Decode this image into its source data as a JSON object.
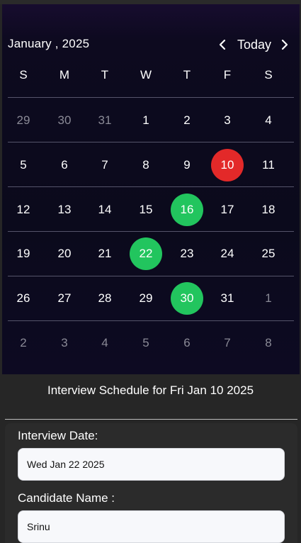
{
  "calendar": {
    "month_label": "January , 2025",
    "today_label": "Today",
    "weekdays": [
      "S",
      "M",
      "T",
      "W",
      "T",
      "F",
      "S"
    ],
    "weeks": [
      [
        "29",
        "30",
        "31",
        "1",
        "2",
        "3",
        "4"
      ],
      [
        "5",
        "6",
        "7",
        "8",
        "9",
        "10",
        "11"
      ],
      [
        "12",
        "13",
        "14",
        "15",
        "16",
        "17",
        "18"
      ],
      [
        "19",
        "20",
        "21",
        "22",
        "23",
        "24",
        "25"
      ],
      [
        "26",
        "27",
        "28",
        "29",
        "30",
        "31",
        "1"
      ],
      [
        "2",
        "3",
        "4",
        "5",
        "6",
        "7",
        "8"
      ]
    ],
    "selected_date": "10",
    "interview_dates": [
      "16",
      "22",
      "30"
    ],
    "colors": {
      "selected": "#e32929",
      "interview": "#22c55e",
      "muted_text": "#8a8a96"
    }
  },
  "schedule": {
    "title": "Interview Schedule for Fri Jan 10 2025",
    "fields": {
      "interview_date_label": "Interview Date:",
      "interview_date_value": "Wed Jan 22 2025",
      "candidate_name_label": "Candidate Name :",
      "candidate_name_value": "Srinu"
    }
  }
}
